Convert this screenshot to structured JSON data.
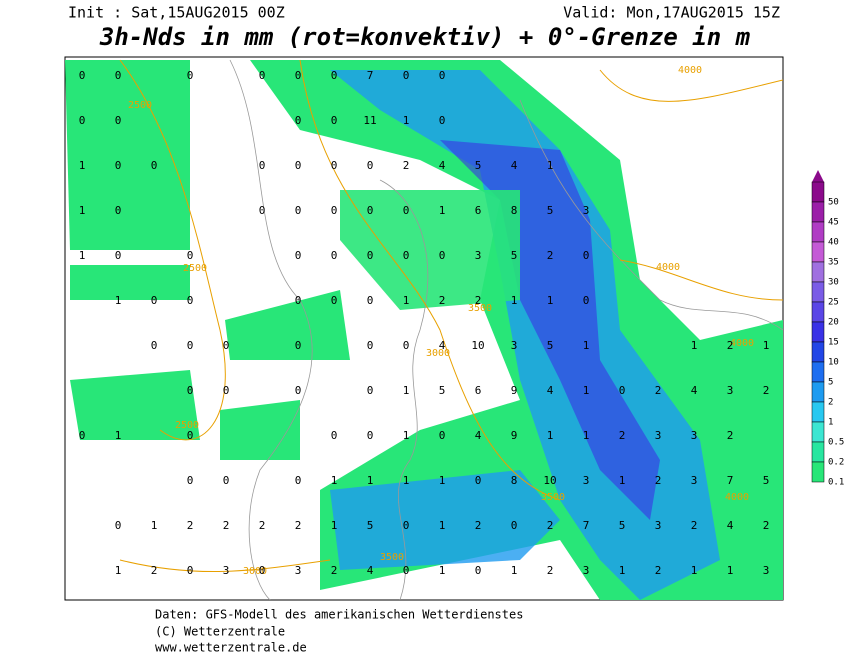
{
  "header": {
    "init": "Init : Sat,15AUG2015 00Z",
    "valid": "Valid: Mon,17AUG2015 15Z",
    "title": "3h-Nds in mm (rot=konvektiv) + 0°-Grenze in m"
  },
  "legend": {
    "levels": [
      {
        "label": "50",
        "color": "#8b0a8b"
      },
      {
        "label": "45",
        "color": "#9b1fa8"
      },
      {
        "label": "40",
        "color": "#b03cc4"
      },
      {
        "label": "35",
        "color": "#c45ad6"
      },
      {
        "label": "30",
        "color": "#a070e0"
      },
      {
        "label": "25",
        "color": "#7a5ce6"
      },
      {
        "label": "20",
        "color": "#5a46e6"
      },
      {
        "label": "15",
        "color": "#3a32e6"
      },
      {
        "label": "10",
        "color": "#2246e6"
      },
      {
        "label": "5",
        "color": "#1e6ef0"
      },
      {
        "label": "2",
        "color": "#1e9bf0"
      },
      {
        "label": "1",
        "color": "#28c8f0"
      },
      {
        "label": "0.5",
        "color": "#3ce6d2"
      },
      {
        "label": "0.2",
        "color": "#28e6a0"
      },
      {
        "label": "0.1",
        "color": "#28e678"
      }
    ]
  },
  "contours": [
    "4000",
    "2500",
    "2500",
    "4000",
    "3500",
    "3000",
    "4000",
    "2500",
    "3500",
    "4000",
    "3500",
    "3000"
  ],
  "grid": [
    [
      0,
      0,
      null,
      0,
      null,
      0,
      0,
      0,
      7,
      0,
      0,
      null,
      null,
      null,
      null,
      null,
      null,
      null,
      null,
      null
    ],
    [
      0,
      0,
      null,
      null,
      null,
      null,
      0,
      0,
      11,
      1,
      0,
      null,
      null,
      null,
      null,
      null,
      null,
      null,
      null,
      null
    ],
    [
      1,
      0,
      0,
      null,
      null,
      0,
      0,
      0,
      0,
      2,
      4,
      5,
      4,
      1,
      null,
      null,
      null,
      null,
      null,
      null
    ],
    [
      1,
      0,
      null,
      null,
      null,
      0,
      0,
      0,
      0,
      0,
      1,
      6,
      8,
      5,
      3,
      null,
      null,
      null,
      null,
      null
    ],
    [
      1,
      0,
      null,
      0,
      null,
      null,
      0,
      0,
      0,
      0,
      0,
      3,
      5,
      2,
      0,
      null,
      null,
      null,
      null,
      null
    ],
    [
      null,
      1,
      0,
      0,
      null,
      null,
      0,
      0,
      0,
      1,
      2,
      2,
      1,
      1,
      0,
      null,
      null,
      null,
      null,
      null
    ],
    [
      null,
      null,
      0,
      0,
      0,
      null,
      0,
      null,
      0,
      0,
      4,
      10,
      3,
      5,
      1,
      null,
      null,
      1,
      2,
      1
    ],
    [
      null,
      null,
      null,
      0,
      0,
      null,
      0,
      null,
      0,
      1,
      5,
      6,
      9,
      4,
      1,
      0,
      2,
      4,
      3,
      2
    ],
    [
      0,
      1,
      null,
      0,
      null,
      null,
      null,
      0,
      0,
      1,
      0,
      4,
      9,
      1,
      1,
      2,
      3,
      3,
      2,
      null
    ],
    [
      null,
      null,
      null,
      0,
      0,
      null,
      0,
      1,
      1,
      1,
      1,
      0,
      8,
      10,
      3,
      1,
      2,
      3,
      7,
      5
    ],
    [
      null,
      0,
      1,
      2,
      2,
      2,
      2,
      1,
      5,
      0,
      1,
      2,
      0,
      2,
      7,
      5,
      3,
      2,
      4,
      2
    ],
    [
      null,
      1,
      2,
      0,
      3,
      0,
      3,
      2,
      4,
      0,
      1,
      0,
      1,
      2,
      3,
      1,
      2,
      1,
      1,
      3
    ]
  ],
  "footer": [
    "Daten: GFS-Modell des amerikanischen Wetterdienstes",
    "(C) Wetterzentrale",
    "www.wetterzentrale.de"
  ]
}
